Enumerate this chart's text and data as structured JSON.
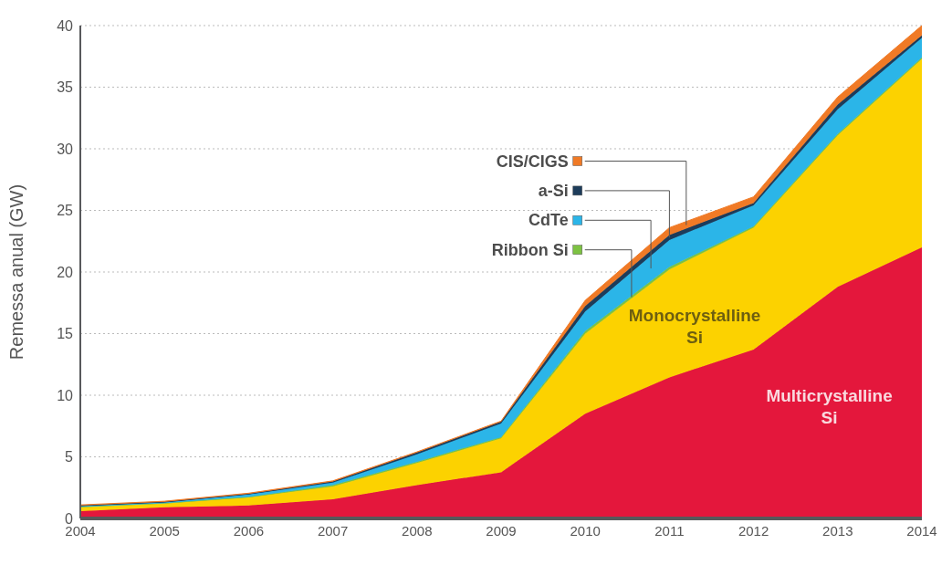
{
  "chart_data": {
    "type": "area",
    "stacked": true,
    "ylabel": "Remessa anual (GW)",
    "x": [
      2004,
      2005,
      2006,
      2007,
      2008,
      2009,
      2010,
      2011,
      2012,
      2013,
      2014
    ],
    "xlim": [
      2004,
      2014
    ],
    "xticks": [
      2004,
      2005,
      2006,
      2007,
      2008,
      2009,
      2010,
      2011,
      2012,
      2013,
      2014
    ],
    "ylim": [
      0,
      40
    ],
    "yticks": [
      0,
      5,
      10,
      15,
      20,
      25,
      30,
      35,
      40
    ],
    "grid": "y",
    "legend": "top",
    "series": [
      {
        "name": "Multicrystalline Si",
        "color": "#e4173c",
        "values": [
          0.6,
          0.9,
          1.05,
          1.55,
          2.7,
          3.75,
          8.5,
          11.45,
          13.7,
          18.8,
          22.0
        ]
      },
      {
        "name": "Monocrystalline Si",
        "color": "#fcd200",
        "values": [
          0.3,
          0.3,
          0.65,
          1.05,
          1.8,
          2.75,
          6.5,
          8.75,
          9.9,
          12.3,
          15.3
        ]
      },
      {
        "name": "Ribbon Si",
        "color": "#7dc242",
        "values": [
          0.05,
          0.05,
          0.05,
          0.1,
          0.1,
          0.1,
          0.2,
          0.2,
          0.1,
          0.1,
          0.1
        ]
      },
      {
        "name": "CdTe",
        "color": "#2bb5e8",
        "values": [
          0.05,
          0.05,
          0.2,
          0.2,
          0.6,
          1.1,
          1.6,
          2.2,
          1.7,
          2.0,
          1.6
        ]
      },
      {
        "name": "a-Si",
        "color": "#1d3c5a",
        "values": [
          0.05,
          0.05,
          0.05,
          0.1,
          0.15,
          0.15,
          0.45,
          0.4,
          0.2,
          0.4,
          0.2
        ]
      },
      {
        "name": "CIS/CIGS",
        "color": "#f07a26",
        "values": [
          0.05,
          0.05,
          0.05,
          0.05,
          0.05,
          0.05,
          0.45,
          0.6,
          0.5,
          0.6,
          0.8
        ]
      }
    ]
  }
}
